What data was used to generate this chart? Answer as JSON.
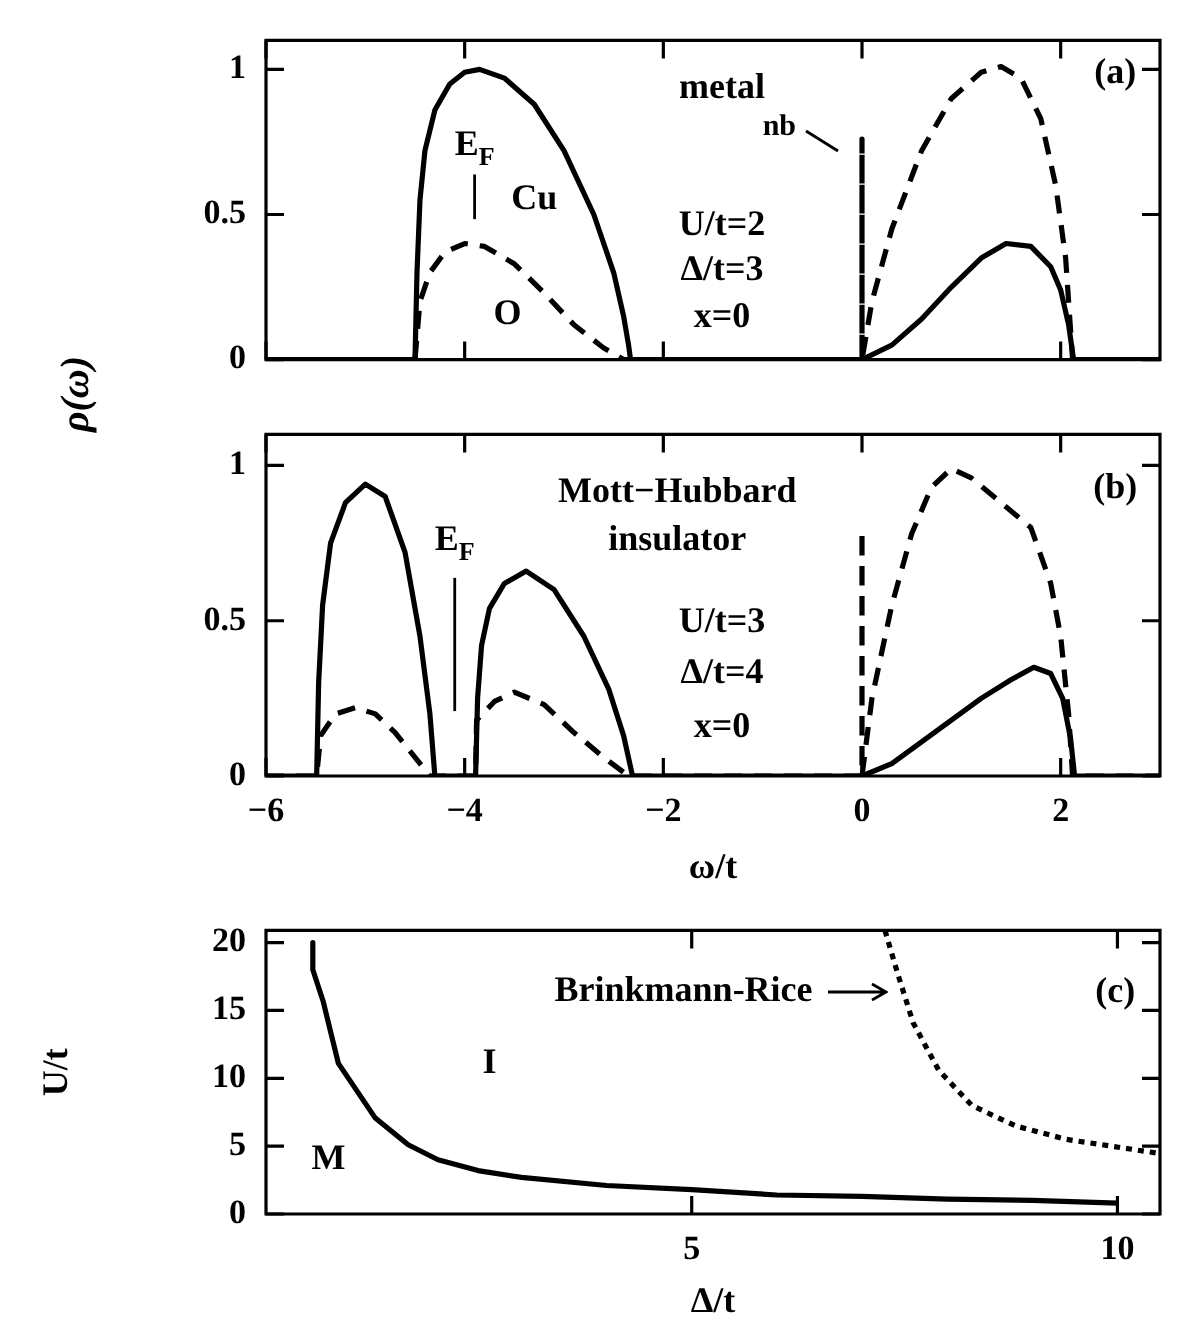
{
  "chart_data": [
    {
      "type": "line",
      "ylabel": "ρ(ω)",
      "xlim": [
        -6,
        3
      ],
      "ylim": [
        0,
        1.1
      ],
      "xticks": [
        -6,
        -4,
        -2,
        0,
        2
      ],
      "yticks": [
        0,
        0.5,
        1
      ],
      "tick_labels": "y",
      "marker": "none",
      "legend": false,
      "grid": false,
      "annotations": [
        "metal",
        "U/t=2",
        "Δ/t=3",
        "x=0",
        "(a)",
        {
          "text": "nb",
          "x": 0,
          "y": 0.76
        }
      ],
      "ref_lines": [
        {
          "axis": "x",
          "value": -3.9,
          "label": "E$_{F}$"
        }
      ],
      "series": [
        {
          "name": "Cu",
          "color": "#000000",
          "line_style": "solid",
          "x": [
            -6,
            -4.5,
            -4.48,
            -4.45,
            -4.4,
            -4.3,
            -4.15,
            -4,
            -3.85,
            -3.6,
            -3.3,
            -3,
            -2.7,
            -2.5,
            -2.4,
            -2.35,
            -2.33,
            0,
            0.3,
            0.6,
            0.9,
            1.2,
            1.45,
            1.7,
            1.9,
            2,
            2.08,
            2.13,
            3
          ],
          "values": [
            0,
            0,
            0.3,
            0.55,
            0.72,
            0.86,
            0.95,
            0.99,
            1,
            0.97,
            0.88,
            0.72,
            0.5,
            0.3,
            0.15,
            0.05,
            0,
            0,
            0.05,
            0.14,
            0.25,
            0.35,
            0.4,
            0.39,
            0.32,
            0.24,
            0.12,
            0,
            0
          ]
        },
        {
          "name": "O",
          "color": "#000000",
          "line_style": "dashed",
          "x": [
            -6,
            -4.5,
            -4.45,
            -4.35,
            -4.2,
            -4,
            -3.8,
            -3.5,
            -3.2,
            -2.9,
            -2.6,
            -2.4,
            0,
            0,
            0,
            0.1,
            0.3,
            0.6,
            0.9,
            1.2,
            1.4,
            1.6,
            1.8,
            1.95,
            2.05,
            2.1,
            2.12,
            3
          ],
          "values": [
            0,
            0,
            0.2,
            0.3,
            0.37,
            0.4,
            0.39,
            0.33,
            0.23,
            0.12,
            0.04,
            0,
            0,
            0.76,
            0,
            0.2,
            0.45,
            0.72,
            0.9,
            0.99,
            1.01,
            0.97,
            0.83,
            0.6,
            0.35,
            0.1,
            0,
            0
          ]
        }
      ]
    },
    {
      "type": "line",
      "xlabel": "ω/t",
      "xlim": [
        -6,
        3
      ],
      "ylim": [
        0,
        1.1
      ],
      "xticks": [
        -6,
        -4,
        -2,
        0,
        2
      ],
      "yticks": [
        0,
        0.5,
        1
      ],
      "marker": "none",
      "legend": false,
      "grid": false,
      "annotations": [
        "Mott−Hubbard insulator",
        "U/t=3",
        "Δ/t=4",
        "x=0",
        "(b)"
      ],
      "ref_lines": [
        {
          "axis": "x",
          "value": -4.1,
          "label": "E$_{F}$"
        }
      ],
      "series": [
        {
          "color": "#000000",
          "line_style": "solid",
          "x": [
            -6,
            -5.49,
            -5.47,
            -5.43,
            -5.35,
            -5.2,
            -5,
            -4.8,
            -4.6,
            -4.45,
            -4.35,
            -4.3,
            -3.89,
            -3.87,
            -3.83,
            -3.75,
            -3.6,
            -3.38,
            -3.1,
            -2.8,
            -2.55,
            -2.4,
            -2.31,
            0,
            0.3,
            0.6,
            0.9,
            1.2,
            1.5,
            1.73,
            1.9,
            2.02,
            2.1,
            2.14,
            3
          ],
          "values": [
            0,
            0,
            0.3,
            0.55,
            0.75,
            0.88,
            0.94,
            0.9,
            0.72,
            0.45,
            0.2,
            0,
            0,
            0.25,
            0.42,
            0.54,
            0.62,
            0.66,
            0.6,
            0.45,
            0.28,
            0.13,
            0,
            0,
            0.04,
            0.11,
            0.18,
            0.25,
            0.31,
            0.35,
            0.33,
            0.25,
            0.12,
            0,
            0
          ]
        },
        {
          "color": "#000000",
          "line_style": "dashed",
          "x": [
            -6,
            -5.49,
            -5.45,
            -5.3,
            -5.1,
            -4.9,
            -4.7,
            -4.5,
            -4.35,
            -3.89,
            -3.88,
            -3.7,
            -3.5,
            -3.2,
            -2.9,
            -2.6,
            -2.35,
            0,
            0,
            0,
            0.1,
            0.3,
            0.5,
            0.7,
            0.9,
            1.1,
            1.4,
            1.7,
            1.9,
            2,
            2.08,
            2.12,
            3
          ],
          "values": [
            0,
            0,
            0.13,
            0.2,
            0.22,
            0.2,
            0.14,
            0.06,
            0,
            0,
            0.18,
            0.24,
            0.27,
            0.23,
            0.14,
            0.06,
            0,
            0,
            0.79,
            0,
            0.25,
            0.55,
            0.78,
            0.93,
            0.99,
            0.96,
            0.88,
            0.8,
            0.62,
            0.45,
            0.2,
            0,
            0
          ]
        }
      ]
    },
    {
      "type": "line",
      "xlabel": "Δ/t",
      "ylabel": "U/t",
      "xlim": [
        0,
        10.5
      ],
      "ylim": [
        0,
        20.9
      ],
      "xticks": [
        5,
        10
      ],
      "yticks": [
        0,
        5,
        10,
        15,
        20
      ],
      "marker": "none",
      "legend": false,
      "grid": false,
      "annotations": [
        "(c)",
        "M",
        "I",
        {
          "text": "Brinkmann-Rice",
          "x": 7.5,
          "y": 16.4
        }
      ],
      "series": [
        {
          "color": "#000000",
          "line_style": "solid",
          "x": [
            0.55,
            0.55,
            0.67,
            0.85,
            1.28,
            1.67,
            2.02,
            2.49,
            3,
            4,
            5,
            6,
            7,
            8,
            9,
            10
          ],
          "values": [
            20,
            18,
            15.7,
            11.1,
            7.1,
            5.1,
            4,
            3.2,
            2.7,
            2.1,
            1.8,
            1.4,
            1.3,
            1.1,
            1,
            0.8
          ]
        },
        {
          "color": "#000000",
          "line_style": "dotted",
          "x": [
            7.27,
            7.42,
            7.6,
            7.9,
            8.29,
            8.8,
            9.4,
            9.93,
            10.45
          ],
          "values": [
            20.9,
            17.7,
            14.1,
            10.6,
            8,
            6.5,
            5.5,
            5,
            4.5
          ]
        }
      ]
    }
  ]
}
